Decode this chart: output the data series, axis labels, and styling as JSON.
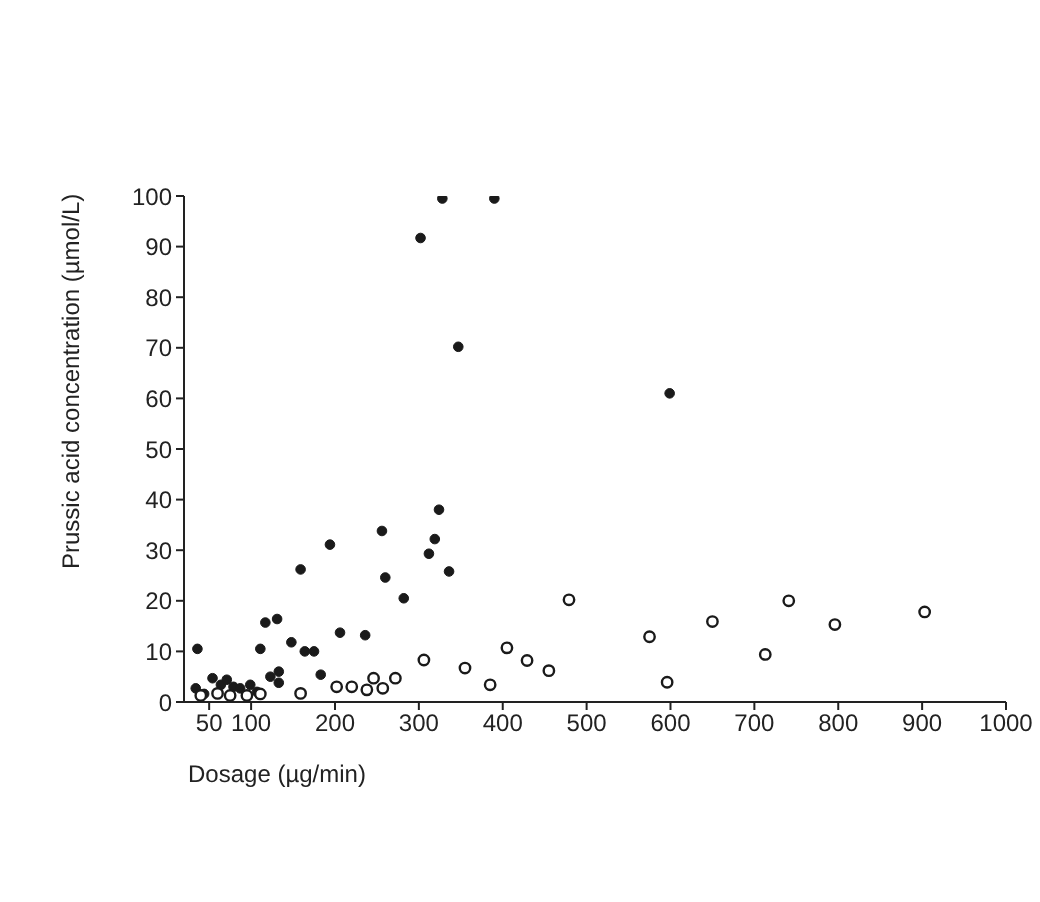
{
  "chart_data": {
    "type": "scatter",
    "xlabel": "Dosage (µg/min)",
    "ylabel": "Prussic acid concentration (µmol/L)",
    "xlim": [
      20,
      1000
    ],
    "xticks": [
      50,
      100,
      200,
      300,
      400,
      500,
      600,
      700,
      800,
      900,
      1000
    ],
    "ylim": [
      0,
      100
    ],
    "yticks": [
      0,
      10,
      20,
      30,
      40,
      50,
      60,
      70,
      80,
      90,
      100
    ],
    "marker": "circle",
    "series": [
      {
        "color": "#1a1a1a",
        "x": [
          36,
          34,
          44,
          54,
          64,
          71,
          79,
          87,
          99,
          107,
          111,
          117,
          123,
          131,
          133,
          133,
          148,
          164,
          175,
          159,
          183,
          194,
          206,
          236,
          256,
          260,
          282,
          302,
          312,
          319,
          324,
          328,
          336,
          347,
          390,
          599
        ],
        "values": [
          10.5,
          2.7,
          1.6,
          4.7,
          3.4,
          4.4,
          3,
          2.7,
          3.4,
          2,
          10.5,
          15.7,
          5,
          16.4,
          6,
          3.8,
          11.8,
          10,
          10,
          26.2,
          5.4,
          31.1,
          13.7,
          13.2,
          33.8,
          24.6,
          20.5,
          91.7,
          29.3,
          32.2,
          38,
          99.5,
          25.8,
          70.2,
          99.5,
          61
        ]
      },
      {
        "color": "#1a1a1a",
        "x": [
          40,
          60,
          75,
          95,
          111,
          159,
          202,
          220,
          238,
          246,
          257,
          272,
          306,
          355,
          385,
          405,
          429,
          455,
          479,
          575,
          596,
          650,
          713,
          741,
          796,
          903
        ],
        "values": [
          1.3,
          1.7,
          1.3,
          1.3,
          1.6,
          1.7,
          3,
          3,
          2.4,
          4.7,
          2.7,
          4.7,
          8.3,
          6.7,
          3.4,
          10.7,
          8.2,
          6.2,
          20.2,
          12.9,
          3.9,
          15.9,
          9.4,
          20,
          15.3,
          17.8
        ]
      }
    ]
  }
}
